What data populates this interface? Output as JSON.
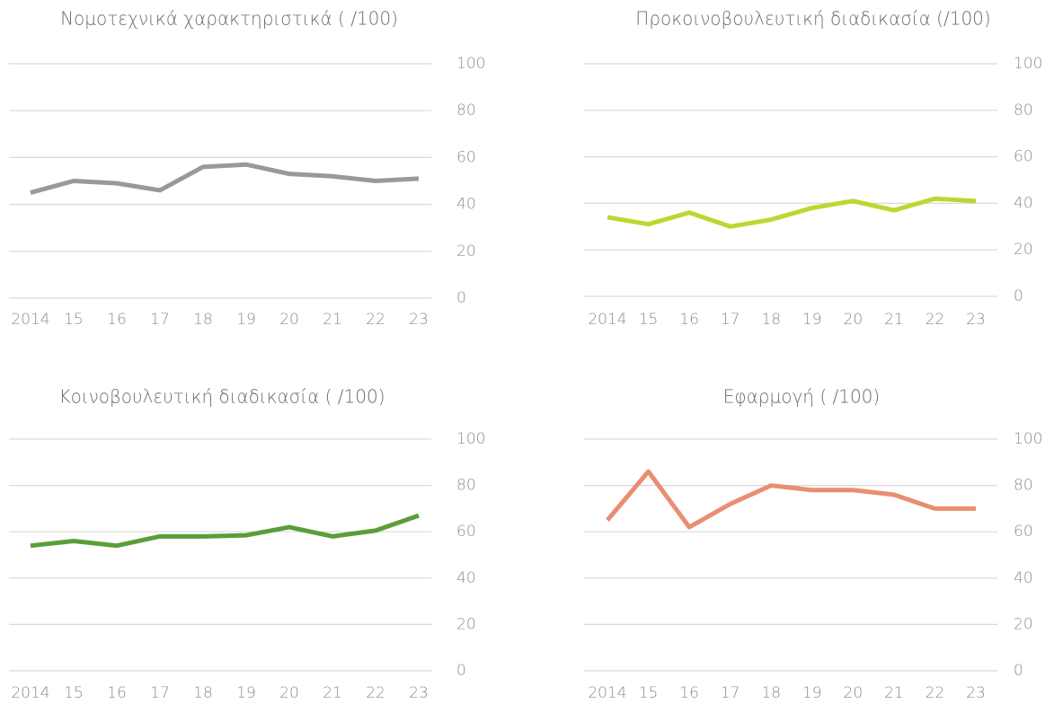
{
  "chart_data": [
    {
      "type": "line",
      "title": "Νομοτεχνικά χαρακτηριστικά ( /100)",
      "categories": [
        "2014",
        "15",
        "16",
        "17",
        "18",
        "19",
        "20",
        "21",
        "22",
        "23"
      ],
      "values": [
        45,
        50,
        49,
        46,
        56,
        57,
        53,
        52,
        50,
        51
      ],
      "color": "#999999",
      "ylim": [
        0,
        100
      ],
      "yticks": [
        0,
        20,
        40,
        60,
        80,
        100
      ],
      "grid": true
    },
    {
      "type": "line",
      "title": "Προκοινοβουλευτική διαδικασία (/100)",
      "categories": [
        "2014",
        "15",
        "16",
        "17",
        "18",
        "19",
        "20",
        "21",
        "22",
        "23"
      ],
      "values": [
        34,
        31,
        36,
        30,
        33,
        38,
        41,
        37,
        42,
        41
      ],
      "color": "#bfd630",
      "ylim": [
        0,
        100
      ],
      "yticks": [
        0,
        20,
        40,
        60,
        80,
        100
      ],
      "grid": true
    },
    {
      "type": "line",
      "title": "Κοινοβουλευτική διαδικασία ( /100)",
      "categories": [
        "2014",
        "15",
        "16",
        "17",
        "18",
        "19",
        "20",
        "21",
        "22",
        "23"
      ],
      "values": [
        54,
        56,
        54,
        58,
        58,
        58.5,
        62,
        58,
        60.5,
        67
      ],
      "color": "#5a9e3a",
      "ylim": [
        0,
        100
      ],
      "yticks": [
        0,
        20,
        40,
        60,
        80,
        100
      ],
      "grid": true
    },
    {
      "type": "line",
      "title": "Εφαρμογή ( /100)",
      "categories": [
        "2014",
        "15",
        "16",
        "17",
        "18",
        "19",
        "20",
        "21",
        "22",
        "23"
      ],
      "values": [
        65,
        86,
        62,
        72,
        80,
        78,
        78,
        76,
        70,
        70
      ],
      "color": "#e98e71",
      "ylim": [
        0,
        100
      ],
      "yticks": [
        0,
        20,
        40,
        60,
        80,
        100
      ],
      "grid": true
    }
  ]
}
